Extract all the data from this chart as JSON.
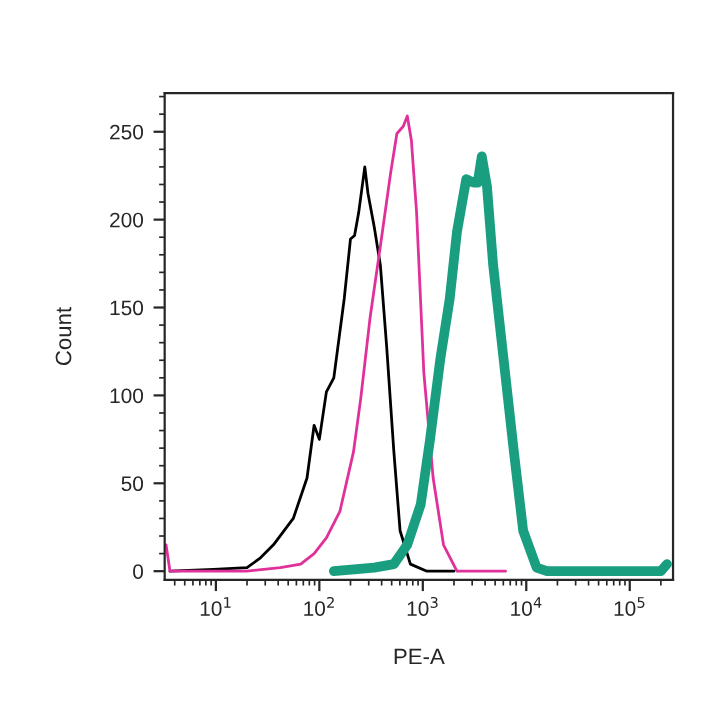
{
  "chart_data": {
    "type": "line",
    "xlabel": "PE-A",
    "ylabel": "Count",
    "log": "x",
    "grid": false,
    "legend": false,
    "xlim": [
      3.2,
      262144
    ],
    "ylim": [
      -5,
      272
    ],
    "xticks": [
      {
        "value": 10,
        "label": "10$^{1}$"
      },
      {
        "value": 100,
        "label": "10$^{2}$"
      },
      {
        "value": 1000,
        "label": "10$^{3}$"
      },
      {
        "value": 10000,
        "label": "10$^{4}$"
      },
      {
        "value": 100000,
        "label": "10$^{5}$"
      }
    ],
    "yticks": [
      0,
      50,
      100,
      150,
      200,
      250
    ],
    "series": [
      {
        "color": "#000000",
        "x": [
          3.6,
          9.5,
          20,
          27,
          36,
          56,
          76,
          89,
          100,
          117,
          138,
          174,
          200,
          219,
          240,
          275,
          295,
          339,
          389,
          447,
          525,
          603,
          759,
          1096,
          2000
        ],
        "values": [
          0,
          1,
          2,
          7.6,
          15,
          30,
          53,
          83,
          75,
          102,
          110,
          155,
          189,
          191,
          204,
          230,
          215,
          196,
          174,
          128,
          68,
          23,
          4,
          0,
          0
        ]
      },
      {
        "color": "#e0309a",
        "x": [
          3.3,
          3.6,
          20,
          42,
          66,
          89,
          117,
          158,
          214,
          251,
          309,
          389,
          490,
          562,
          646,
          708,
          776,
          871,
          1023,
          1259,
          1585,
          2138,
          6310
        ],
        "values": [
          15,
          0,
          0,
          2,
          4,
          10,
          19,
          34,
          68,
          98,
          144,
          185,
          227,
          249,
          253,
          259,
          245,
          204,
          113,
          53,
          15,
          0,
          0
        ]
      },
      {
        "color": "#1a9e80",
        "x": [
          138,
          339,
          525,
          708,
          955,
          1175,
          1479,
          1820,
          2138,
          2630,
          3090,
          3388,
          3715,
          4169,
          4786,
          6026,
          7586,
          9333,
          12590,
          15850,
          199500,
          229000
        ],
        "values": [
          0,
          2,
          4,
          15,
          38,
          75,
          121,
          155,
          193,
          223,
          221,
          221,
          236,
          219,
          174,
          121,
          68,
          23,
          2,
          0,
          0,
          4
        ]
      }
    ]
  }
}
